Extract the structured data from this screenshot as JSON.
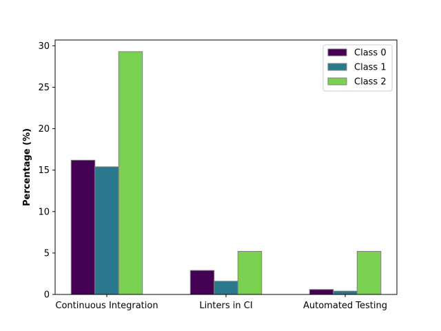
{
  "chart_data": {
    "type": "bar",
    "title": "",
    "xlabel": "",
    "ylabel": "Percentage (%)",
    "ylim": [
      0,
      30.7
    ],
    "yticks": [
      0,
      5,
      10,
      15,
      20,
      25,
      30
    ],
    "categories": [
      "Continuous Integration",
      "Linters in CI",
      "Automated Testing"
    ],
    "series": [
      {
        "name": "Class 0",
        "color": "#440154",
        "values": [
          16.2,
          2.9,
          0.6
        ]
      },
      {
        "name": "Class 1",
        "color": "#2a788e",
        "values": [
          15.4,
          1.6,
          0.4
        ]
      },
      {
        "name": "Class 2",
        "color": "#7ad151",
        "values": [
          29.3,
          5.2,
          5.2
        ]
      }
    ],
    "legend": {
      "position": "top-right"
    },
    "grid": false
  }
}
